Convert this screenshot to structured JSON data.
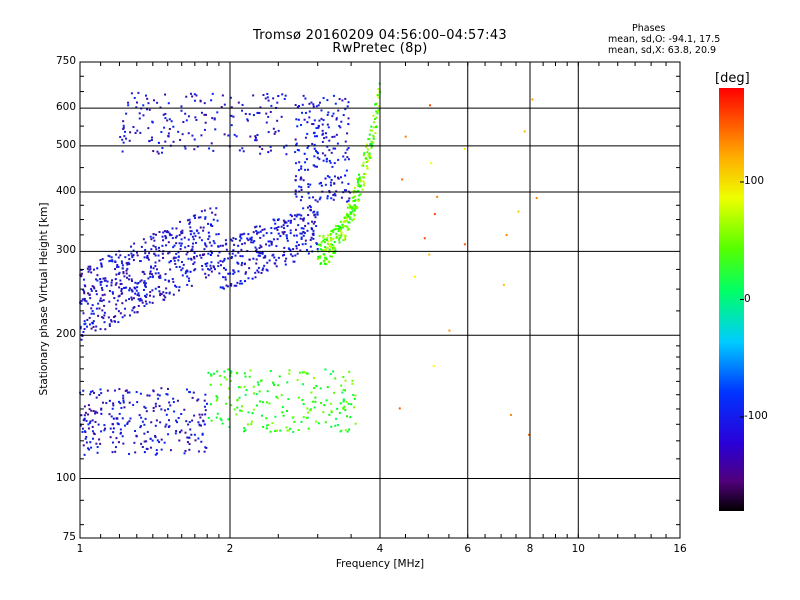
{
  "header": {
    "title_line1": "Tromsø 20160209 04:56:00–04:57:43",
    "title_line2": "RwPretec (8p)"
  },
  "phase_info": {
    "heading": "Phases",
    "line_O": "mean, sd,O: -94.1, 17.5",
    "line_X": "mean, sd,X: 63.8, 20.9"
  },
  "colorbar": {
    "unit": "[deg]",
    "ticks": [
      100,
      0,
      -100
    ],
    "range": [
      -180,
      180
    ]
  },
  "chart_data": {
    "type": "scatter",
    "title": "Tromsø 20160209 04:56:00–04:57:43",
    "subtitle": "RwPretec (8p)",
    "xlabel": "Frequency [MHz]",
    "ylabel": "Stationary phase Virtual Height [km]",
    "x_scale": "log",
    "y_scale": "log",
    "xlim": [
      1,
      16
    ],
    "ylim": [
      75,
      750
    ],
    "x_ticks": [
      1,
      2,
      4,
      6,
      8,
      10,
      16
    ],
    "y_ticks": [
      75,
      100,
      200,
      300,
      400,
      500,
      600,
      750
    ],
    "x_grid": [
      2,
      4,
      6,
      8,
      10
    ],
    "y_grid": [
      100,
      200,
      300,
      400,
      500,
      600
    ],
    "color_by": "phase [deg]",
    "clusters": [
      {
        "id": "F-trace-low",
        "f": [
          1.0,
          1.9
        ],
        "h": [
          205,
          390
        ],
        "phase": -100,
        "n": 520
      },
      {
        "id": "F-trace-mid",
        "f": [
          1.9,
          3.0
        ],
        "h": [
          280,
          420
        ],
        "phase": -95,
        "n": 280
      },
      {
        "id": "F-trace-upper",
        "f": [
          2.7,
          3.5
        ],
        "h": [
          380,
          640
        ],
        "phase": -90,
        "n": 200
      },
      {
        "id": "F-X-trace",
        "f": [
          3.0,
          4.0
        ],
        "h": [
          300,
          650
        ],
        "phase": 75,
        "n": 260
      },
      {
        "id": "F-upper-scatter",
        "f": [
          1.2,
          2.6
        ],
        "h": [
          480,
          650
        ],
        "phase": -100,
        "n": 180
      },
      {
        "id": "E-trace-O",
        "f": [
          1.0,
          1.8
        ],
        "h": [
          112,
          155
        ],
        "phase": -100,
        "n": 260
      },
      {
        "id": "E-trace-X",
        "f": [
          1.8,
          3.6
        ],
        "h": [
          125,
          170
        ],
        "phase": 60,
        "n": 200
      },
      {
        "id": "scattered-high-freq",
        "f": [
          4.2,
          8.6
        ],
        "h": [
          120,
          660
        ],
        "phase": 140,
        "n": 22
      }
    ]
  }
}
